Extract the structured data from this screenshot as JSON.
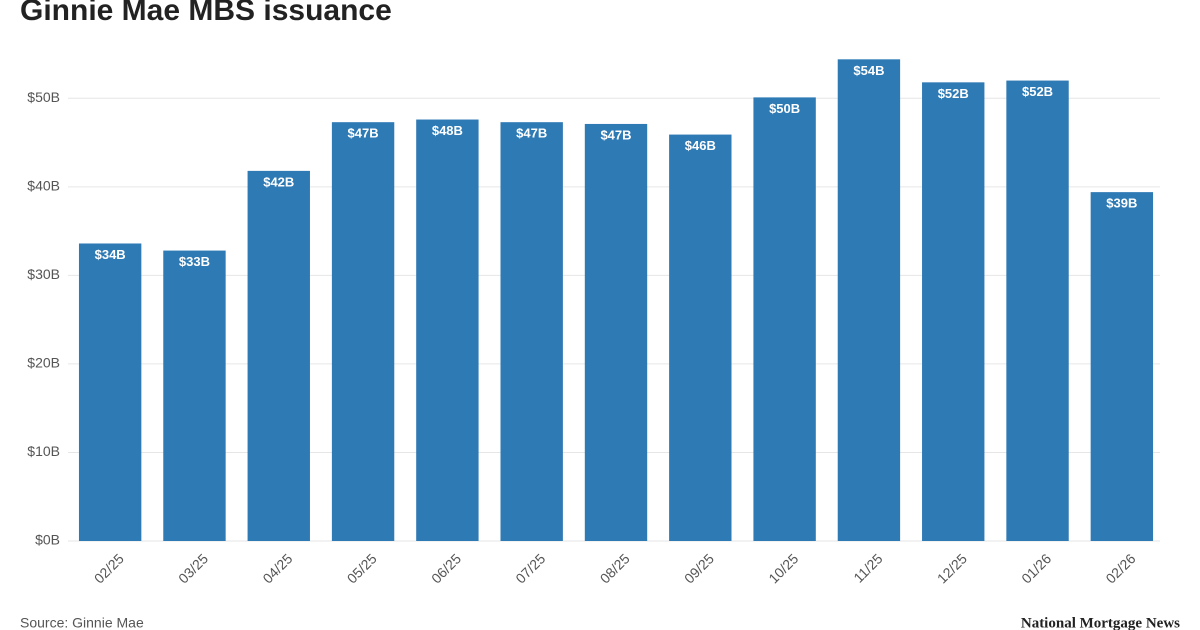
{
  "chart_data": {
    "type": "bar",
    "title": "Ginnie Mae MBS issuance",
    "categories": [
      "02/25",
      "03/25",
      "04/25",
      "05/25",
      "06/25",
      "07/25",
      "08/25",
      "09/25",
      "10/25",
      "11/25",
      "12/25",
      "01/26",
      "02/26"
    ],
    "values": [
      33.6,
      32.8,
      41.8,
      47.3,
      47.6,
      47.3,
      47.1,
      45.9,
      50.1,
      54.4,
      51.8,
      52.0,
      39.4
    ],
    "value_labels": [
      "$34B",
      "$33B",
      "$42B",
      "$47B",
      "$48B",
      "$47B",
      "$47B",
      "$46B",
      "$50B",
      "$54B",
      "$52B",
      "$52B",
      "$39B"
    ],
    "color": "#2e7ab5",
    "ylim": [
      0,
      55
    ],
    "yticks": [
      {
        "value": 0,
        "label": "$0B"
      },
      {
        "value": 10,
        "label": "$10B"
      },
      {
        "value": 20,
        "label": "$20B"
      },
      {
        "value": 30,
        "label": "$30B"
      },
      {
        "value": 40,
        "label": "$40B"
      },
      {
        "value": 50,
        "label": "$50B"
      }
    ],
    "grid": true,
    "source": "Source: Ginnie Mae",
    "logo": "National Mortgage News"
  }
}
